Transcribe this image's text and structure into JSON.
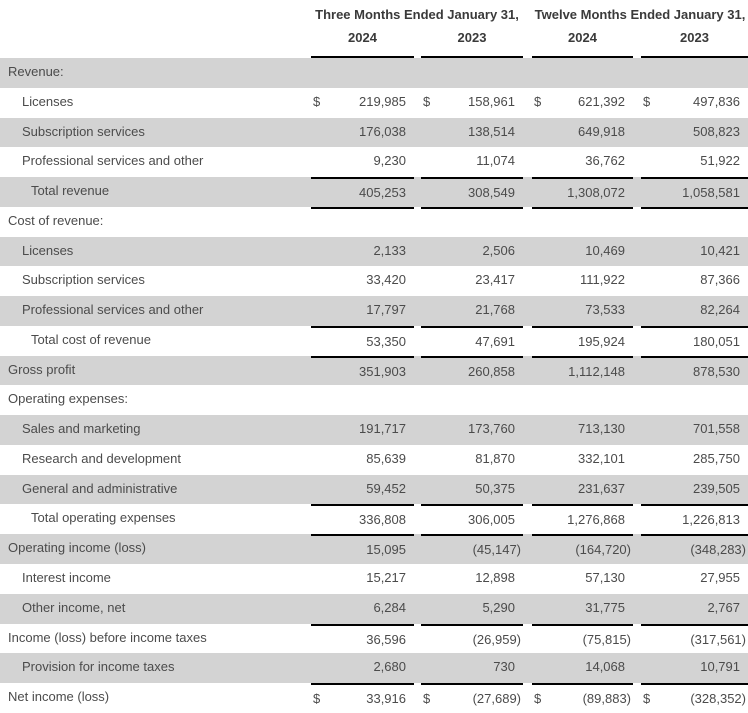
{
  "header": {
    "period_groups": [
      "Three Months Ended January 31,",
      "Twelve Months Ended January 31,"
    ],
    "years": [
      "2024",
      "2023",
      "2024",
      "2023"
    ]
  },
  "colors": {
    "row_shaded": "#d3d3d3",
    "row_plain": "#ffffff",
    "text": "#4b4b4b",
    "header_text": "#3a3a3a",
    "rule": "#000000"
  },
  "table": {
    "currency_symbol": "$",
    "rows": [
      {
        "label": "Revenue:",
        "indent": 0,
        "shaded": true,
        "dollar": false,
        "rule_top": false,
        "values": [
          "",
          "",
          "",
          ""
        ]
      },
      {
        "label": "Licenses",
        "indent": 1,
        "shaded": false,
        "dollar": true,
        "rule_top": false,
        "values": [
          "219,985",
          "158,961",
          "621,392",
          "497,836"
        ]
      },
      {
        "label": "Subscription services",
        "indent": 1,
        "shaded": true,
        "dollar": false,
        "rule_top": false,
        "values": [
          "176,038",
          "138,514",
          "649,918",
          "508,823"
        ]
      },
      {
        "label": "Professional services and other",
        "indent": 1,
        "shaded": false,
        "dollar": false,
        "rule_top": false,
        "values": [
          "9,230",
          "11,074",
          "36,762",
          "51,922"
        ]
      },
      {
        "label": "Total revenue",
        "indent": 2,
        "shaded": true,
        "dollar": false,
        "rule_top": true,
        "values": [
          "405,253",
          "308,549",
          "1,308,072",
          "1,058,581"
        ]
      },
      {
        "label": "Cost of revenue:",
        "indent": 0,
        "shaded": false,
        "dollar": false,
        "rule_top": true,
        "values": [
          "",
          "",
          "",
          ""
        ]
      },
      {
        "label": "Licenses",
        "indent": 1,
        "shaded": true,
        "dollar": false,
        "rule_top": false,
        "values": [
          "2,133",
          "2,506",
          "10,469",
          "10,421"
        ]
      },
      {
        "label": "Subscription services",
        "indent": 1,
        "shaded": false,
        "dollar": false,
        "rule_top": false,
        "values": [
          "33,420",
          "23,417",
          "111,922",
          "87,366"
        ]
      },
      {
        "label": "Professional services and other",
        "indent": 1,
        "shaded": true,
        "dollar": false,
        "rule_top": false,
        "values": [
          "17,797",
          "21,768",
          "73,533",
          "82,264"
        ]
      },
      {
        "label": "Total cost of revenue",
        "indent": 2,
        "shaded": false,
        "dollar": false,
        "rule_top": true,
        "values": [
          "53,350",
          "47,691",
          "195,924",
          "180,051"
        ]
      },
      {
        "label": "Gross profit",
        "indent": 0,
        "shaded": true,
        "dollar": false,
        "rule_top": true,
        "values": [
          "351,903",
          "260,858",
          "1,112,148",
          "878,530"
        ]
      },
      {
        "label": "Operating expenses:",
        "indent": 0,
        "shaded": false,
        "dollar": false,
        "rule_top": false,
        "values": [
          "",
          "",
          "",
          ""
        ]
      },
      {
        "label": "Sales and marketing",
        "indent": 1,
        "shaded": true,
        "dollar": false,
        "rule_top": false,
        "values": [
          "191,717",
          "173,760",
          "713,130",
          "701,558"
        ]
      },
      {
        "label": "Research and development",
        "indent": 1,
        "shaded": false,
        "dollar": false,
        "rule_top": false,
        "values": [
          "85,639",
          "81,870",
          "332,101",
          "285,750"
        ]
      },
      {
        "label": "General and administrative",
        "indent": 1,
        "shaded": true,
        "dollar": false,
        "rule_top": false,
        "values": [
          "59,452",
          "50,375",
          "231,637",
          "239,505"
        ]
      },
      {
        "label": "Total operating expenses",
        "indent": 2,
        "shaded": false,
        "dollar": false,
        "rule_top": true,
        "values": [
          "336,808",
          "306,005",
          "1,276,868",
          "1,226,813"
        ]
      },
      {
        "label": "Operating income (loss)",
        "indent": 0,
        "shaded": true,
        "dollar": false,
        "rule_top": true,
        "values": [
          "15,095",
          "(45,147)",
          "(164,720)",
          "(348,283)"
        ]
      },
      {
        "label": "Interest income",
        "indent": 1,
        "shaded": false,
        "dollar": false,
        "rule_top": false,
        "values": [
          "15,217",
          "12,898",
          "57,130",
          "27,955"
        ]
      },
      {
        "label": "Other income, net",
        "indent": 1,
        "shaded": true,
        "dollar": false,
        "rule_top": false,
        "values": [
          "6,284",
          "5,290",
          "31,775",
          "2,767"
        ]
      },
      {
        "label": "Income (loss) before income taxes",
        "indent": 0,
        "shaded": false,
        "dollar": false,
        "rule_top": true,
        "values": [
          "36,596",
          "(26,959)",
          "(75,815)",
          "(317,561)"
        ]
      },
      {
        "label": "Provision for income taxes",
        "indent": 1,
        "shaded": true,
        "dollar": false,
        "rule_top": false,
        "values": [
          "2,680",
          "730",
          "14,068",
          "10,791"
        ]
      },
      {
        "label": "Net income (loss)",
        "indent": 0,
        "shaded": false,
        "dollar": true,
        "rule_top": true,
        "values": [
          "33,916",
          "(27,689)",
          "(89,883)",
          "(328,352)"
        ]
      }
    ]
  }
}
